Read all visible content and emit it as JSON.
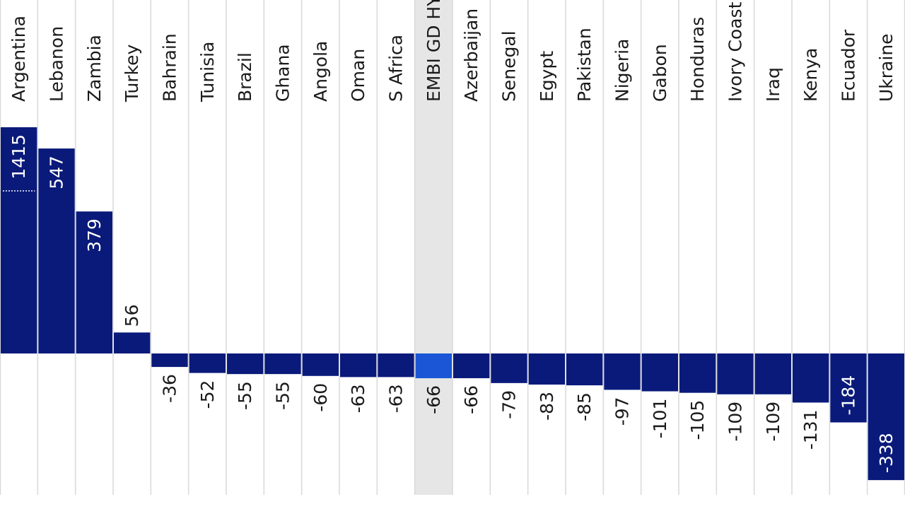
{
  "chart_data": {
    "type": "bar",
    "title": "",
    "xlabel": "",
    "ylabel": "",
    "categories": [
      "Argentina",
      "Lebanon",
      "Zambia",
      "Turkey",
      "Bahrain",
      "Tunisia",
      "Brazil",
      "Ghana",
      "Angola",
      "Oman",
      "S Africa",
      "EMBI GD HY",
      "Azerbaijan",
      "Senegal",
      "Egypt",
      "Pakistan",
      "Nigeria",
      "Gabon",
      "Honduras",
      "Ivory Coast",
      "Iraq",
      "Kenya",
      "Ecuador",
      "Ukraine"
    ],
    "values": [
      1415,
      547,
      379,
      56,
      -36,
      -52,
      -55,
      -55,
      -60,
      -63,
      -63,
      -66,
      -66,
      -79,
      -83,
      -85,
      -97,
      -101,
      -105,
      -109,
      -109,
      -131,
      -184,
      -338
    ],
    "value_labels": [
      "1415",
      "547",
      "379",
      "56",
      "-36",
      "-52",
      "-55",
      "-55",
      "-60",
      "-63",
      "-63",
      "-66",
      "-66",
      "-79",
      "-83",
      "-85",
      "-97",
      "-101",
      "-105",
      "-109",
      "-109",
      "-131",
      "-184",
      "-338"
    ],
    "highlight": "EMBI GD HY",
    "ylim": [
      -380,
      600
    ],
    "axis_break": {
      "category": "Argentina",
      "note": "bar truncated; value exceeds axis"
    },
    "grid": true,
    "orientation": "vertical bars, labels rotated 90°",
    "colors": {
      "bar": "#0a1a7a",
      "highlight_bar": "#1a56d6",
      "highlight_band": "#e6e6e6",
      "gridline": "#d9d9d9",
      "label_on_bar": "#ffffff",
      "label_off_bar": "#1a1a1a"
    }
  }
}
